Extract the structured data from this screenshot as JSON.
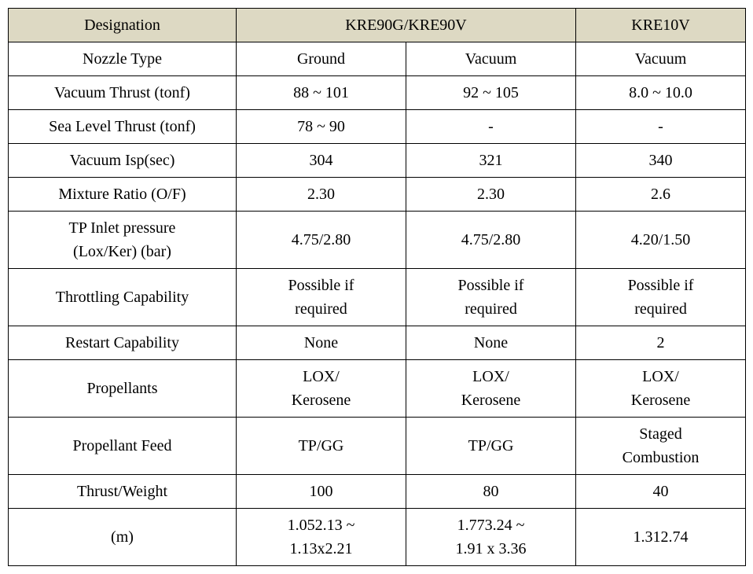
{
  "header": {
    "designation": "Designation",
    "kre90": "KRE90G/KRE90V",
    "kre10v": "KRE10V"
  },
  "rows": [
    {
      "label": "Nozzle Type",
      "c1": "Ground",
      "c2": "Vacuum",
      "c3": "Vacuum"
    },
    {
      "label": "Vacuum Thrust (tonf)",
      "c1": "88  ~  101",
      "c2": "92  ~  105",
      "c3": "8.0  ~  10.0"
    },
    {
      "label": "Sea Level Thrust (tonf)",
      "c1": "78  ~  90",
      "c2": "-",
      "c3": "-"
    },
    {
      "label": "Vacuum Isp(sec)",
      "c1": "304",
      "c2": "321",
      "c3": "340"
    },
    {
      "label": "Mixture Ratio (O/F)",
      "c1": "2.30",
      "c2": "2.30",
      "c3": "2.6"
    },
    {
      "label": "TP Inlet pressure\n(Lox/Ker) (bar)",
      "c1": "4.75/2.80",
      "c2": "4.75/2.80",
      "c3": "4.20/1.50"
    },
    {
      "label": "Throttling Capability",
      "c1": "Possible if\nrequired",
      "c2": "Possible if\nrequired",
      "c3": "Possible if\nrequired"
    },
    {
      "label": "Restart Capability",
      "c1": "None",
      "c2": "None",
      "c3": "2"
    },
    {
      "label": "Propellants",
      "c1": "LOX/\nKerosene",
      "c2": "LOX/\nKerosene",
      "c3": "LOX/\nKerosene"
    },
    {
      "label": "Propellant Feed",
      "c1": "TP/GG",
      "c2": "TP/GG",
      "c3": "Staged\nCombustion"
    },
    {
      "label": "Thrust/Weight",
      "c1": "100",
      "c2": "80",
      "c3": "40"
    },
    {
      "label": "(m)",
      "c1": "1.052.13 ~\n1.13x2.21",
      "c2": "1.773.24 ~\n1.91 x 3.36",
      "c3": "1.312.74"
    }
  ]
}
